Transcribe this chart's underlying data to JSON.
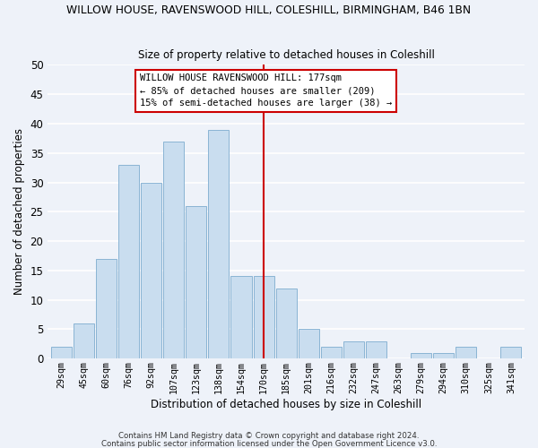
{
  "title": "WILLOW HOUSE, RAVENSWOOD HILL, COLESHILL, BIRMINGHAM, B46 1BN",
  "subtitle": "Size of property relative to detached houses in Coleshill",
  "xlabel": "Distribution of detached houses by size in Coleshill",
  "ylabel": "Number of detached properties",
  "bar_color": "#c9ddef",
  "bar_edge_color": "#8ab4d4",
  "background_color": "#eef2f9",
  "grid_color": "#ffffff",
  "annotation_text": "WILLOW HOUSE RAVENSWOOD HILL: 177sqm\n← 85% of detached houses are smaller (209)\n15% of semi-detached houses are larger (38) →",
  "vline_color": "#cc0000",
  "vline_bin_index": 9,
  "categories": [
    "29sqm",
    "45sqm",
    "60sqm",
    "76sqm",
    "92sqm",
    "107sqm",
    "123sqm",
    "138sqm",
    "154sqm",
    "170sqm",
    "185sqm",
    "201sqm",
    "216sqm",
    "232sqm",
    "247sqm",
    "263sqm",
    "279sqm",
    "294sqm",
    "310sqm",
    "325sqm",
    "341sqm"
  ],
  "values": [
    2,
    6,
    17,
    33,
    30,
    37,
    26,
    39,
    14,
    14,
    12,
    5,
    2,
    3,
    3,
    0,
    1,
    1,
    2,
    0,
    2
  ],
  "ylim": [
    0,
    50
  ],
  "yticks": [
    0,
    5,
    10,
    15,
    20,
    25,
    30,
    35,
    40,
    45,
    50
  ],
  "footer1": "Contains HM Land Registry data © Crown copyright and database right 2024.",
  "footer2": "Contains public sector information licensed under the Open Government Licence v3.0."
}
